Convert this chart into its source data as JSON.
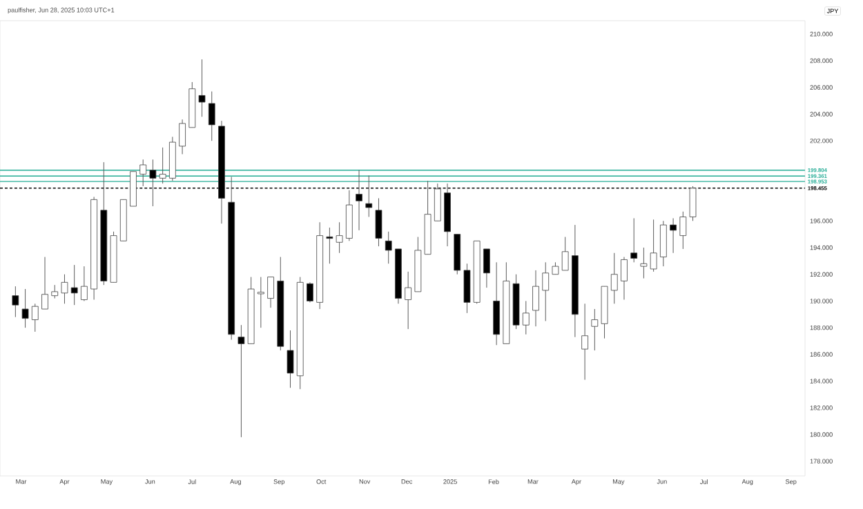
{
  "chart_data": {
    "type": "candlestick",
    "ylabel": "JPY",
    "annotations": [
      "paulfisher, Jun 28, 2025 10:03 UTC+1"
    ],
    "x": [
      "2024-02-26",
      "2024-03-04",
      "2024-03-11",
      "2024-03-18",
      "2024-03-25",
      "2024-04-01",
      "2024-04-08",
      "2024-04-15",
      "2024-04-22",
      "2024-04-29",
      "2024-05-06",
      "2024-05-13",
      "2024-05-20",
      "2024-05-27",
      "2024-06-03",
      "2024-06-10",
      "2024-06-17",
      "2024-06-24",
      "2024-07-01",
      "2024-07-08",
      "2024-07-15",
      "2024-07-22",
      "2024-07-29",
      "2024-08-05",
      "2024-08-12",
      "2024-08-19",
      "2024-08-26",
      "2024-09-02",
      "2024-09-09",
      "2024-09-16",
      "2024-09-23",
      "2024-09-30",
      "2024-10-07",
      "2024-10-14",
      "2024-10-21",
      "2024-10-28",
      "2024-11-04",
      "2024-11-11",
      "2024-11-18",
      "2024-11-25",
      "2024-12-02",
      "2024-12-09",
      "2024-12-16",
      "2024-12-23",
      "2024-12-30",
      "2025-01-06",
      "2025-01-13",
      "2025-01-20",
      "2025-01-27",
      "2025-02-03",
      "2025-02-10",
      "2025-02-17",
      "2025-02-24",
      "2025-03-03",
      "2025-03-10",
      "2025-03-17",
      "2025-03-24",
      "2025-03-31",
      "2025-04-07",
      "2025-04-14",
      "2025-04-21",
      "2025-04-28",
      "2025-05-05",
      "2025-05-12",
      "2025-05-19",
      "2025-05-26",
      "2025-06-02",
      "2025-06-09",
      "2025-06-16",
      "2025-06-23"
    ],
    "ohlc": [
      [
        190.4,
        191.1,
        188.8,
        189.7
      ],
      [
        189.4,
        190.9,
        188.0,
        188.7
      ],
      [
        188.6,
        189.8,
        187.7,
        189.6
      ],
      [
        189.4,
        193.3,
        189.4,
        190.5
      ],
      [
        190.4,
        191.2,
        190.2,
        190.7
      ],
      [
        190.6,
        192.0,
        189.8,
        191.4
      ],
      [
        191.0,
        192.7,
        189.7,
        190.6
      ],
      [
        190.1,
        192.6,
        190.0,
        191.1
      ],
      [
        190.9,
        197.8,
        190.1,
        197.6
      ],
      [
        196.8,
        200.4,
        191.2,
        191.5
      ],
      [
        191.4,
        195.2,
        191.4,
        194.9
      ],
      [
        194.5,
        197.6,
        194.5,
        197.6
      ],
      [
        197.1,
        199.7,
        197.1,
        199.7
      ],
      [
        199.5,
        200.6,
        198.6,
        200.2
      ],
      [
        199.8,
        200.6,
        197.1,
        199.2
      ],
      [
        199.2,
        201.5,
        198.8,
        199.5
      ],
      [
        199.2,
        202.3,
        199.0,
        201.9
      ],
      [
        201.6,
        203.6,
        201.0,
        203.3
      ],
      [
        203.0,
        206.4,
        203.0,
        205.9
      ],
      [
        205.4,
        208.1,
        203.8,
        204.9
      ],
      [
        204.8,
        205.7,
        202.0,
        203.2
      ],
      [
        203.1,
        203.5,
        195.8,
        197.7
      ],
      [
        197.4,
        199.3,
        187.1,
        187.5
      ],
      [
        187.3,
        188.2,
        179.8,
        186.8
      ],
      [
        186.8,
        191.8,
        186.8,
        190.9
      ],
      [
        190.6,
        191.8,
        188.0,
        190.6
      ],
      [
        190.2,
        191.8,
        189.5,
        191.8
      ],
      [
        191.5,
        193.3,
        186.3,
        186.6
      ],
      [
        186.3,
        187.8,
        183.5,
        184.6
      ],
      [
        184.4,
        191.8,
        183.4,
        191.4
      ],
      [
        191.3,
        191.4,
        189.9,
        190.0
      ],
      [
        189.9,
        195.9,
        189.4,
        194.9
      ],
      [
        194.8,
        195.5,
        192.8,
        194.7
      ],
      [
        194.4,
        195.9,
        193.6,
        194.9
      ],
      [
        194.7,
        198.3,
        194.5,
        197.2
      ],
      [
        198.0,
        199.8,
        195.3,
        197.5
      ],
      [
        197.3,
        199.4,
        196.3,
        197.0
      ],
      [
        196.8,
        197.7,
        194.1,
        194.7
      ],
      [
        194.5,
        195.2,
        192.8,
        193.8
      ],
      [
        193.9,
        193.9,
        189.8,
        190.2
      ],
      [
        190.1,
        192.2,
        187.9,
        191.0
      ],
      [
        190.7,
        194.8,
        190.7,
        193.8
      ],
      [
        193.5,
        199.0,
        193.5,
        196.5
      ],
      [
        196.0,
        198.8,
        196.0,
        198.4
      ],
      [
        198.1,
        198.8,
        194.1,
        195.2
      ],
      [
        195.0,
        195.0,
        192.0,
        192.3
      ],
      [
        192.3,
        192.8,
        189.1,
        189.9
      ],
      [
        189.9,
        194.5,
        189.8,
        194.5
      ],
      [
        193.9,
        193.9,
        191.0,
        192.1
      ],
      [
        190.0,
        192.9,
        186.7,
        187.5
      ],
      [
        186.8,
        192.9,
        186.8,
        191.5
      ],
      [
        191.3,
        192.0,
        187.9,
        188.2
      ],
      [
        188.2,
        190.0,
        187.5,
        189.1
      ],
      [
        189.3,
        192.3,
        188.1,
        191.1
      ],
      [
        190.8,
        192.9,
        188.5,
        192.1
      ],
      [
        192.0,
        192.9,
        192.0,
        192.6
      ],
      [
        192.3,
        194.8,
        192.3,
        193.7
      ],
      [
        193.4,
        195.7,
        187.3,
        189.0
      ],
      [
        186.4,
        189.8,
        184.1,
        187.4
      ],
      [
        188.1,
        189.4,
        186.3,
        188.6
      ],
      [
        188.3,
        191.1,
        187.2,
        191.1
      ],
      [
        190.8,
        193.6,
        189.8,
        192.0
      ],
      [
        191.5,
        193.3,
        190.1,
        193.1
      ],
      [
        193.6,
        196.2,
        192.9,
        193.2
      ],
      [
        192.6,
        194.0,
        191.7,
        192.8
      ],
      [
        192.4,
        196.1,
        192.2,
        193.6
      ],
      [
        193.3,
        196.0,
        192.6,
        195.7
      ],
      [
        195.7,
        196.2,
        193.6,
        195.3
      ],
      [
        194.9,
        196.7,
        193.9,
        196.3
      ],
      [
        196.3,
        198.6,
        196.0,
        198.455
      ]
    ],
    "xlim": [
      "2024-02-15",
      "2025-09-11"
    ],
    "xticks": [
      {
        "value": "2024-03-01",
        "label": "Mar"
      },
      {
        "value": "2024-04-01",
        "label": "Apr"
      },
      {
        "value": "2024-05-01",
        "label": "May"
      },
      {
        "value": "2024-06-01",
        "label": "Jun"
      },
      {
        "value": "2024-07-01",
        "label": "Jul"
      },
      {
        "value": "2024-08-01",
        "label": "Aug"
      },
      {
        "value": "2024-09-01",
        "label": "Sep"
      },
      {
        "value": "2024-10-01",
        "label": "Oct"
      },
      {
        "value": "2024-11-01",
        "label": "Nov"
      },
      {
        "value": "2024-12-01",
        "label": "Dec"
      },
      {
        "value": "2025-01-01",
        "label": "2025"
      },
      {
        "value": "2025-02-01",
        "label": "Feb"
      },
      {
        "value": "2025-03-01",
        "label": "Mar"
      },
      {
        "value": "2025-04-01",
        "label": "Apr"
      },
      {
        "value": "2025-05-01",
        "label": "May"
      },
      {
        "value": "2025-06-01",
        "label": "Jun"
      },
      {
        "value": "2025-07-01",
        "label": "Jul"
      },
      {
        "value": "2025-08-01",
        "label": "Aug"
      },
      {
        "value": "2025-09-01",
        "label": "Sep"
      }
    ],
    "ylim": [
      176.9,
      211.0
    ],
    "yticks": [
      {
        "value": 178,
        "label": "178.000"
      },
      {
        "value": 180,
        "label": "180.000"
      },
      {
        "value": 182,
        "label": "182.000"
      },
      {
        "value": 184,
        "label": "184.000"
      },
      {
        "value": 186,
        "label": "186.000"
      },
      {
        "value": 188,
        "label": "188.000"
      },
      {
        "value": 190,
        "label": "190.000"
      },
      {
        "value": 192,
        "label": "192.000"
      },
      {
        "value": 194,
        "label": "194.000"
      },
      {
        "value": 196,
        "label": "196.000"
      },
      {
        "value": 202,
        "label": "202.000"
      },
      {
        "value": 204,
        "label": "204.000"
      },
      {
        "value": 206,
        "label": "206.000"
      },
      {
        "value": 208,
        "label": "208.000"
      },
      {
        "value": 210,
        "label": "210.000"
      }
    ],
    "ref_lines": [
      {
        "axis": "y",
        "value": 199.804,
        "label": "199.804",
        "color": "#22ab94"
      },
      {
        "axis": "y",
        "value": 199.361,
        "label": "199.361",
        "color": "#22ab94"
      },
      {
        "axis": "y",
        "value": 198.953,
        "label": "198.953",
        "color": "#22ab94"
      },
      {
        "axis": "y",
        "value": 198.455,
        "label": "198.455",
        "color": "#000000",
        "line_style": "dashed"
      }
    ]
  }
}
